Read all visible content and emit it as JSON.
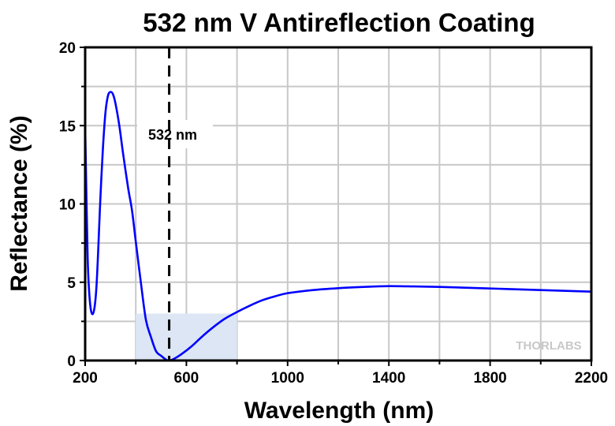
{
  "chart_data": {
    "type": "line",
    "title": "532 nm V Antireflection Coating",
    "xlabel": "Wavelength (nm)",
    "ylabel": "Reflectance (%)",
    "xlim": [
      200,
      2200
    ],
    "ylim": [
      0,
      20
    ],
    "xticks": [
      200,
      600,
      1000,
      1400,
      1800,
      2200
    ],
    "yticks": [
      0,
      5,
      10,
      15,
      20
    ],
    "grid": true,
    "series": [
      {
        "name": "Reflectance",
        "color": "#0000ff",
        "x": [
          200,
          205,
          210,
          215,
          222,
          230,
          238,
          245,
          252,
          260,
          270,
          280,
          290,
          300,
          310,
          320,
          335,
          350,
          370,
          385,
          400,
          420,
          440,
          460,
          480,
          500,
          520,
          532,
          550,
          580,
          620,
          660,
          700,
          750,
          800,
          850,
          900,
          950,
          1000,
          1100,
          1200,
          1300,
          1400,
          1500,
          1600,
          1700,
          1800,
          1900,
          2000,
          2100,
          2200
        ],
        "y": [
          15.0,
          10.5,
          6.5,
          4.6,
          3.3,
          2.97,
          3.5,
          4.8,
          7.2,
          10.3,
          13.5,
          15.8,
          16.9,
          17.15,
          17.0,
          16.4,
          15.0,
          13.2,
          11.0,
          9.6,
          7.6,
          5.0,
          2.6,
          1.5,
          0.6,
          0.3,
          0.05,
          0.0,
          0.1,
          0.4,
          0.9,
          1.5,
          2.05,
          2.65,
          3.1,
          3.5,
          3.85,
          4.1,
          4.3,
          4.5,
          4.62,
          4.7,
          4.75,
          4.73,
          4.7,
          4.65,
          4.6,
          4.55,
          4.5,
          4.45,
          4.4
        ]
      }
    ],
    "marker_line": {
      "x": 532,
      "label": "532 nm"
    },
    "shaded_region": {
      "x": [
        400,
        800
      ],
      "y": [
        0,
        3
      ],
      "color": "#dce6f5"
    },
    "watermark": "THORLABS"
  }
}
